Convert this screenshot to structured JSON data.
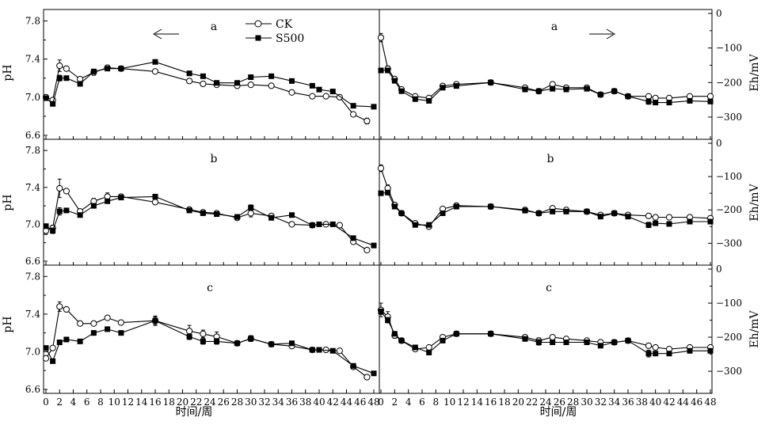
{
  "chart_data": {
    "type": "line",
    "layout": "3x2 grid",
    "legend": {
      "placement": "top-center",
      "entries": [
        "CK",
        "S500"
      ]
    },
    "x_title": "时间/周",
    "x_ticks": [
      0,
      2,
      4,
      6,
      8,
      10,
      12,
      14,
      16,
      18,
      20,
      22,
      24,
      26,
      28,
      30,
      32,
      34,
      36,
      38,
      40,
      42,
      44,
      46,
      48
    ],
    "left_ylabel": "pH",
    "right_ylabel": "Eh/mV",
    "left_yticks": [
      "6.6",
      "7.0",
      "7.4",
      "7.8"
    ],
    "right_yticks": [
      "0",
      "-100",
      "-200",
      "-300"
    ],
    "left_ylim": [
      6.6,
      7.9
    ],
    "right_ylim": [
      -350,
      0
    ],
    "panels": [
      {
        "id": "ph-a",
        "side": "left",
        "row": 0,
        "label": "a",
        "arrow": "left",
        "series": [
          {
            "name": "CK",
            "x": [
              0,
              1,
              2,
              3,
              5,
              7,
              9,
              11,
              16,
              21,
              23,
              25,
              28,
              30,
              33,
              36,
              39,
              41,
              43,
              45,
              47
            ],
            "y": [
              7.0,
              6.97,
              7.33,
              7.3,
              7.19,
              7.26,
              7.31,
              7.3,
              7.27,
              7.17,
              7.14,
              7.13,
              7.12,
              7.13,
              7.12,
              7.05,
              7.01,
              7.01,
              7.0,
              6.82,
              6.75
            ],
            "err": [
              0.02,
              0.02,
              0.06,
              0.02,
              0.02,
              0.03,
              0.02,
              0.01,
              0.02,
              0.02,
              0.01,
              0.02,
              0.02,
              0.01,
              0.02,
              0.01,
              0.01,
              0.02,
              0.01,
              0.02,
              0.03
            ]
          },
          {
            "name": "S500",
            "x": [
              0,
              1,
              2,
              3,
              5,
              7,
              9,
              11,
              16,
              21,
              23,
              25,
              28,
              30,
              33,
              36,
              39,
              40,
              42,
              45,
              48
            ],
            "y": [
              6.99,
              6.93,
              7.2,
              7.2,
              7.14,
              7.27,
              7.3,
              7.3,
              7.37,
              7.25,
              7.22,
              7.15,
              7.15,
              7.21,
              7.22,
              7.17,
              7.12,
              7.08,
              7.06,
              6.91,
              6.9
            ],
            "err": [
              0.02,
              0.02,
              0.03,
              0.02,
              0.02,
              0.02,
              0.02,
              0.01,
              0.02,
              0.02,
              0.02,
              0.01,
              0.01,
              0.01,
              0.01,
              0.01,
              0.01,
              0.01,
              0.01,
              0.01,
              0.01
            ]
          }
        ]
      },
      {
        "id": "eh-a",
        "side": "right",
        "row": 0,
        "label": "a",
        "arrow": "right",
        "series": [
          {
            "name": "CK",
            "x": [
              0,
              1,
              2,
              3,
              5,
              7,
              9,
              11,
              16,
              21,
              23,
              25,
              27,
              30,
              32,
              34,
              36,
              39,
              40,
              42,
              45,
              48
            ],
            "y": [
              -70,
              -160,
              -190,
              -220,
              -240,
              -245,
              -210,
              -205,
              -200,
              -215,
              -225,
              -205,
              -215,
              -215,
              -235,
              -225,
              -240,
              -240,
              -245,
              -245,
              -240,
              -240
            ],
            "err": [
              12,
              8,
              6,
              5,
              4,
              4,
              3,
              3,
              5,
              3,
              3,
              4,
              3,
              3,
              3,
              3,
              3,
              6,
              5,
              3,
              3,
              3
            ]
          },
          {
            "name": "S500",
            "x": [
              0,
              1,
              2,
              3,
              5,
              7,
              9,
              11,
              16,
              21,
              23,
              25,
              27,
              30,
              32,
              34,
              36,
              39,
              40,
              42,
              45,
              48
            ],
            "y": [
              -165,
              -165,
              -195,
              -225,
              -248,
              -253,
              -215,
              -210,
              -200,
              -220,
              -225,
              -218,
              -220,
              -218,
              -235,
              -225,
              -240,
              -255,
              -258,
              -258,
              -253,
              -255
            ],
            "err": [
              5,
              5,
              5,
              5,
              5,
              4,
              4,
              3,
              6,
              3,
              3,
              3,
              3,
              3,
              3,
              3,
              3,
              8,
              6,
              3,
              3,
              3
            ]
          }
        ]
      },
      {
        "id": "ph-b",
        "side": "left",
        "row": 1,
        "label": "b",
        "series": [
          {
            "name": "CK",
            "x": [
              0,
              1,
              2,
              3,
              5,
              7,
              9,
              11,
              16,
              21,
              23,
              25,
              28,
              30,
              33,
              36,
              39,
              41,
              43,
              45,
              47
            ],
            "y": [
              6.93,
              6.96,
              7.39,
              7.36,
              7.14,
              7.25,
              7.3,
              7.3,
              7.24,
              7.16,
              7.13,
              7.12,
              7.07,
              7.12,
              7.09,
              7.0,
              6.99,
              7.0,
              6.99,
              6.81,
              6.72
            ],
            "err": [
              0.04,
              0.03,
              0.1,
              0.02,
              0.02,
              0.03,
              0.04,
              0.01,
              0.02,
              0.02,
              0.01,
              0.02,
              0.02,
              0.04,
              0.02,
              0.01,
              0.02,
              0.02,
              0.02,
              0.02,
              0.02
            ]
          },
          {
            "name": "S500",
            "x": [
              0,
              1,
              2,
              3,
              5,
              7,
              9,
              11,
              16,
              21,
              23,
              25,
              28,
              30,
              33,
              36,
              39,
              40,
              42,
              45,
              48
            ],
            "y": [
              6.98,
              6.93,
              7.14,
              7.15,
              7.1,
              7.2,
              7.25,
              7.29,
              7.3,
              7.15,
              7.12,
              7.11,
              7.08,
              7.18,
              7.07,
              7.1,
              6.99,
              7.0,
              7.0,
              6.85,
              6.77
            ],
            "err": [
              0.02,
              0.03,
              0.04,
              0.02,
              0.02,
              0.02,
              0.02,
              0.02,
              0.02,
              0.02,
              0.01,
              0.01,
              0.01,
              0.03,
              0.02,
              0.01,
              0.01,
              0.01,
              0.01,
              0.02,
              0.02
            ]
          }
        ]
      },
      {
        "id": "eh-b",
        "side": "right",
        "row": 1,
        "label": "b",
        "series": [
          {
            "name": "CK",
            "x": [
              0,
              1,
              2,
              3,
              5,
              7,
              9,
              11,
              16,
              21,
              23,
              25,
              27,
              30,
              32,
              34,
              36,
              39,
              40,
              42,
              45,
              48
            ],
            "y": [
              -75,
              -135,
              -185,
              -210,
              -240,
              -250,
              -197,
              -187,
              -190,
              -200,
              -210,
              -195,
              -200,
              -205,
              -215,
              -210,
              -215,
              -218,
              -222,
              -222,
              -222,
              -225
            ],
            "err": [
              10,
              10,
              6,
              5,
              5,
              5,
              4,
              3,
              4,
              3,
              3,
              4,
              3,
              3,
              3,
              3,
              3,
              5,
              4,
              3,
              3,
              3
            ]
          },
          {
            "name": "S500",
            "x": [
              0,
              1,
              2,
              3,
              5,
              7,
              9,
              11,
              16,
              21,
              23,
              25,
              27,
              30,
              32,
              34,
              36,
              39,
              40,
              42,
              45,
              48
            ],
            "y": [
              -150,
              -148,
              -190,
              -210,
              -245,
              -245,
              -210,
              -190,
              -190,
              -202,
              -210,
              -205,
              -205,
              -205,
              -220,
              -210,
              -220,
              -245,
              -240,
              -242,
              -235,
              -235
            ],
            "err": [
              6,
              6,
              5,
              5,
              6,
              5,
              4,
              3,
              4,
              3,
              3,
              3,
              3,
              3,
              3,
              3,
              3,
              8,
              6,
              3,
              3,
              3
            ]
          }
        ]
      },
      {
        "id": "ph-c",
        "side": "left",
        "row": 2,
        "label": "c",
        "series": [
          {
            "name": "CK",
            "x": [
              0,
              1,
              2,
              3,
              5,
              7,
              9,
              11,
              16,
              21,
              23,
              25,
              28,
              30,
              33,
              36,
              39,
              41,
              43,
              45,
              47
            ],
            "y": [
              6.93,
              7.04,
              7.48,
              7.45,
              7.3,
              7.3,
              7.36,
              7.31,
              7.33,
              7.22,
              7.19,
              7.16,
              7.09,
              7.14,
              7.08,
              7.06,
              7.02,
              7.02,
              7.01,
              6.84,
              6.73
            ],
            "err": [
              0.02,
              0.02,
              0.05,
              0.02,
              0.02,
              0.02,
              0.02,
              0.02,
              0.05,
              0.06,
              0.04,
              0.05,
              0.02,
              0.03,
              0.02,
              0.02,
              0.02,
              0.02,
              0.01,
              0.02,
              0.02
            ]
          },
          {
            "name": "S500",
            "x": [
              0,
              1,
              2,
              3,
              5,
              7,
              9,
              11,
              16,
              21,
              23,
              25,
              28,
              30,
              33,
              36,
              39,
              40,
              42,
              45,
              48
            ],
            "y": [
              7.04,
              6.9,
              7.1,
              7.13,
              7.11,
              7.2,
              7.24,
              7.2,
              7.33,
              7.16,
              7.11,
              7.11,
              7.09,
              7.14,
              7.08,
              7.09,
              7.02,
              7.02,
              7.01,
              6.85,
              6.77
            ],
            "err": [
              0.02,
              0.02,
              0.02,
              0.02,
              0.02,
              0.02,
              0.02,
              0.02,
              0.04,
              0.03,
              0.03,
              0.03,
              0.02,
              0.03,
              0.02,
              0.02,
              0.02,
              0.02,
              0.01,
              0.02,
              0.02
            ]
          }
        ]
      },
      {
        "id": "eh-c",
        "side": "right",
        "row": 2,
        "label": "c",
        "series": [
          {
            "name": "CK",
            "x": [
              0,
              1,
              2,
              3,
              5,
              7,
              9,
              11,
              16,
              21,
              23,
              25,
              27,
              30,
              32,
              34,
              36,
              39,
              40,
              42,
              45,
              48
            ],
            "y": [
              -120,
              -140,
              -195,
              -210,
              -235,
              -230,
              -200,
              -190,
              -190,
              -200,
              -210,
              -200,
              -205,
              -210,
              -215,
              -215,
              -210,
              -225,
              -230,
              -235,
              -230,
              -230
            ],
            "err": [
              20,
              15,
              8,
              5,
              5,
              4,
              6,
              3,
              6,
              3,
              8,
              3,
              4,
              6,
              3,
              3,
              3,
              6,
              4,
              3,
              3,
              3
            ]
          },
          {
            "name": "S500",
            "x": [
              0,
              1,
              2,
              3,
              5,
              7,
              9,
              11,
              16,
              21,
              23,
              25,
              27,
              30,
              32,
              34,
              36,
              39,
              40,
              42,
              45,
              48
            ],
            "y": [
              -125,
              -150,
              -190,
              -210,
              -230,
              -245,
              -210,
              -190,
              -190,
              -205,
              -215,
              -215,
              -215,
              -215,
              -225,
              -215,
              -210,
              -248,
              -248,
              -248,
              -240,
              -240
            ],
            "err": [
              8,
              8,
              6,
              5,
              5,
              5,
              4,
              3,
              5,
              3,
              8,
              3,
              3,
              3,
              3,
              3,
              3,
              10,
              6,
              3,
              3,
              3
            ]
          }
        ]
      }
    ]
  }
}
